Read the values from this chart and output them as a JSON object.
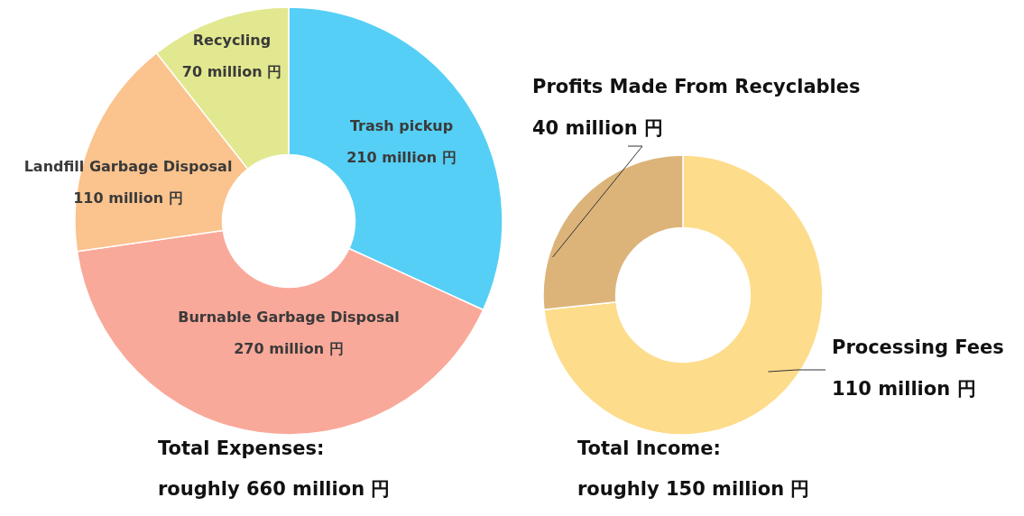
{
  "chart_data": [
    {
      "type": "donut",
      "categories": [
        "Trash pickup",
        "Burnable Garbage Disposal",
        "Landfill Garbage Disposal",
        "Recycling"
      ],
      "values": [
        210,
        270,
        110,
        70
      ],
      "colors": [
        "#55cff5",
        "#f9a99a",
        "#fbc38d",
        "#e2e88f"
      ],
      "value_labels": [
        "210 million 円",
        "270 million 円",
        "110 million 円",
        "70 million 円"
      ],
      "annotations": [
        "Total Expenses:",
        "roughly 660 million 円"
      ]
    },
    {
      "type": "donut",
      "categories": [
        "Processing Fees",
        "Profits Made From Recyclables"
      ],
      "values": [
        110,
        40
      ],
      "colors": [
        "#fddc8b",
        "#dcb47a"
      ],
      "value_labels": [
        "110 million 円",
        "40 million 円"
      ],
      "annotations": [
        "Total Income:",
        "roughly 150 million 円"
      ]
    }
  ]
}
